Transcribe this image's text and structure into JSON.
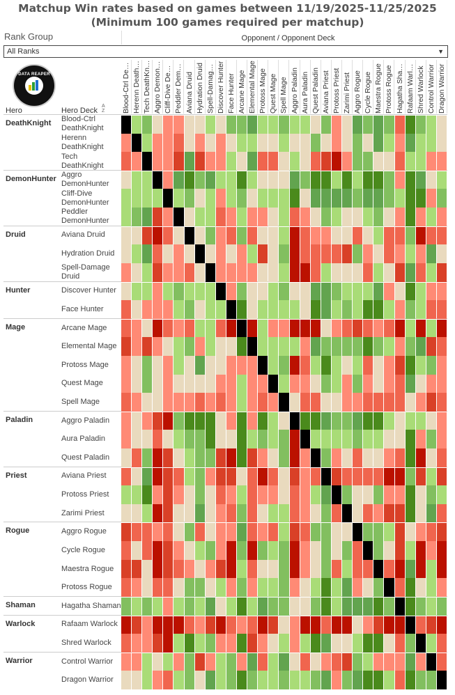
{
  "title_line1": "Matchup Win rates based on games between 11/19/2025-11/25/2025",
  "title_line2": "(Minimum 100 games required per matchup)",
  "filter": {
    "label": "Rank Group",
    "value": "All Ranks"
  },
  "logo_text": "DATA REAPER REPORT",
  "headers": {
    "hero": "Hero",
    "deck": "Hero Deck",
    "sort_icon": "A Z",
    "opponent": "Opponent / Opponent Deck"
  },
  "colors": {
    "diagonal": "#000000",
    "scale": [
      {
        "max": 39,
        "color": "#bb1100"
      },
      {
        "max": 43,
        "color": "#d94027"
      },
      {
        "max": 46,
        "color": "#f0654e"
      },
      {
        "max": 48,
        "color": "#ff8a75"
      },
      {
        "max": 51,
        "color": "#e9dabe"
      },
      {
        "max": 54,
        "color": "#a9dc77"
      },
      {
        "max": 56,
        "color": "#82bf5f"
      },
      {
        "max": 59,
        "color": "#62a44f"
      },
      {
        "max": 100,
        "color": "#4a8a1c"
      }
    ]
  },
  "chart_data": {
    "type": "heatmap",
    "title": "Matchup Win rates based on games between 11/19/2025-11/25/2025 (Minimum 100 games required per matchup)",
    "value_unit": "approximate win rate % (estimated from colour)",
    "groups": [
      {
        "hero": "DeathKnight",
        "decks": [
          "Blood-Ctrl DeathKnight",
          "Herenn DeathKnight",
          "Tech DeathKnight"
        ]
      },
      {
        "hero": "DemonHunter",
        "decks": [
          "Aggro DemonHunter",
          "Cliff-Dive DemonHunter",
          "Peddler DemonHunter"
        ]
      },
      {
        "hero": "Druid",
        "decks": [
          "Aviana Druid",
          "Hydration Druid",
          "Spell-Damage Druid"
        ]
      },
      {
        "hero": "Hunter",
        "decks": [
          "Discover Hunter",
          "Face Hunter"
        ]
      },
      {
        "hero": "Mage",
        "decks": [
          "Arcane Mage",
          "Elemental Mage",
          "Protoss Mage",
          "Quest Mage",
          "Spell Mage"
        ]
      },
      {
        "hero": "Paladin",
        "decks": [
          "Aggro Paladin",
          "Aura Paladin",
          "Quest Paladin"
        ]
      },
      {
        "hero": "Priest",
        "decks": [
          "Aviana Priest",
          "Protoss Priest",
          "Zarimi Priest"
        ]
      },
      {
        "hero": "Rogue",
        "decks": [
          "Aggro Rogue",
          "Cycle Rogue",
          "Maestra Rogue",
          "Protoss Rogue"
        ]
      },
      {
        "hero": "Shaman",
        "decks": [
          "Hagatha Shaman"
        ]
      },
      {
        "hero": "Warlock",
        "decks": [
          "Rafaam Warlock",
          "Shred Warlock"
        ]
      },
      {
        "hero": "Warrior",
        "decks": [
          "Control Warrior",
          "Dragon Warrior"
        ]
      }
    ],
    "columns": [
      "Blood-Ctrl DeathKnight",
      "Herenn DeathKnight",
      "Tech DeathKnight",
      "Aggro DemonHunter",
      "Cliff-Dive DemonHunter",
      "Peddler DemonHunter",
      "Aviana Druid",
      "Hydration Druid",
      "Spell-Damage Druid",
      "Discover Hunter",
      "Face Hunter",
      "Arcane Mage",
      "Elemental Mage",
      "Protoss Mage",
      "Quest Mage",
      "Spell Mage",
      "Aggro Paladin",
      "Aura Paladin",
      "Quest Paladin",
      "Aviana Priest",
      "Protoss Priest",
      "Zarimi Priest",
      "Aggro Rogue",
      "Cycle Rogue",
      "Maestra Rogue",
      "Protoss Rogue",
      "Hagatha Shaman",
      "Rafaam Warlock",
      "Shred Warlock",
      "Control Warrior",
      "Dragon Warrior"
    ],
    "values": [
      [
        null,
        53,
        55,
        50,
        47,
        47,
        50,
        50,
        53,
        50,
        55,
        55,
        58,
        53,
        53,
        55,
        53,
        53,
        50,
        55,
        47,
        50,
        58,
        55,
        58,
        55,
        45,
        62,
        55,
        53,
        50
      ],
      [
        47,
        null,
        53,
        47,
        47,
        45,
        50,
        47,
        50,
        47,
        50,
        53,
        53,
        50,
        50,
        53,
        50,
        50,
        55,
        50,
        47,
        50,
        55,
        50,
        58,
        53,
        47,
        58,
        53,
        53,
        50
      ],
      [
        45,
        47,
        null,
        47,
        47,
        42,
        58,
        42,
        47,
        47,
        53,
        50,
        58,
        45,
        45,
        50,
        53,
        50,
        45,
        42,
        38,
        47,
        55,
        55,
        50,
        50,
        45,
        53,
        53,
        47,
        47
      ],
      [
        50,
        53,
        53,
        null,
        47,
        58,
        62,
        55,
        58,
        53,
        53,
        62,
        53,
        50,
        50,
        50,
        58,
        55,
        62,
        62,
        53,
        62,
        53,
        62,
        62,
        55,
        47,
        62,
        58,
        50,
        53
      ],
      [
        53,
        53,
        53,
        53,
        null,
        53,
        55,
        50,
        53,
        47,
        53,
        55,
        50,
        53,
        53,
        53,
        62,
        50,
        58,
        58,
        58,
        58,
        55,
        58,
        58,
        55,
        53,
        62,
        62,
        47,
        55
      ],
      [
        53,
        55,
        58,
        42,
        47,
        null,
        50,
        53,
        53,
        45,
        47,
        53,
        47,
        47,
        50,
        53,
        45,
        47,
        50,
        55,
        53,
        50,
        50,
        53,
        55,
        50,
        47,
        62,
        47,
        53,
        47
      ],
      [
        50,
        50,
        42,
        38,
        45,
        50,
        null,
        50,
        55,
        47,
        45,
        55,
        45,
        50,
        50,
        53,
        38,
        45,
        47,
        47,
        50,
        50,
        45,
        50,
        53,
        45,
        45,
        55,
        38,
        45,
        45
      ],
      [
        50,
        53,
        58,
        45,
        50,
        47,
        50,
        null,
        50,
        47,
        50,
        47,
        53,
        42,
        50,
        55,
        38,
        45,
        45,
        45,
        45,
        42,
        55,
        47,
        50,
        45,
        47,
        53,
        47,
        58,
        50
      ],
      [
        47,
        50,
        53,
        42,
        47,
        47,
        45,
        50,
        null,
        47,
        47,
        47,
        47,
        50,
        50,
        53,
        38,
        38,
        45,
        53,
        50,
        50,
        50,
        45,
        53,
        50,
        42,
        58,
        45,
        53,
        42
      ],
      [
        50,
        53,
        53,
        47,
        53,
        55,
        53,
        53,
        53,
        null,
        47,
        55,
        50,
        50,
        53,
        55,
        50,
        50,
        58,
        58,
        55,
        53,
        53,
        53,
        58,
        47,
        50,
        62,
        53,
        47,
        47
      ],
      [
        45,
        50,
        47,
        47,
        47,
        53,
        55,
        50,
        53,
        53,
        null,
        62,
        50,
        53,
        53,
        53,
        53,
        50,
        62,
        58,
        53,
        55,
        53,
        62,
        62,
        53,
        47,
        55,
        53,
        45,
        45
      ],
      [
        45,
        47,
        50,
        38,
        45,
        47,
        45,
        53,
        53,
        45,
        38,
        null,
        38,
        53,
        47,
        47,
        38,
        38,
        38,
        50,
        47,
        45,
        42,
        45,
        47,
        45,
        38,
        53,
        38,
        53,
        38
      ],
      [
        42,
        47,
        42,
        47,
        50,
        53,
        55,
        47,
        53,
        50,
        50,
        62,
        null,
        53,
        53,
        53,
        53,
        47,
        58,
        55,
        55,
        55,
        55,
        62,
        55,
        53,
        47,
        55,
        58,
        42,
        45
      ],
      [
        47,
        50,
        55,
        50,
        47,
        53,
        50,
        58,
        50,
        50,
        47,
        47,
        47,
        null,
        53,
        55,
        38,
        45,
        53,
        62,
        53,
        50,
        53,
        45,
        50,
        47,
        42,
        62,
        53,
        55,
        47
      ],
      [
        47,
        50,
        55,
        50,
        47,
        50,
        50,
        50,
        50,
        47,
        47,
        53,
        47,
        47,
        null,
        53,
        47,
        47,
        50,
        55,
        53,
        47,
        55,
        47,
        50,
        47,
        45,
        58,
        50,
        47,
        47
      ],
      [
        45,
        47,
        50,
        50,
        47,
        47,
        47,
        45,
        47,
        45,
        47,
        53,
        47,
        45,
        47,
        null,
        50,
        45,
        45,
        50,
        50,
        47,
        47,
        45,
        45,
        45,
        45,
        50,
        47,
        42,
        45
      ],
      [
        47,
        50,
        47,
        42,
        38,
        55,
        62,
        62,
        62,
        50,
        47,
        62,
        47,
        62,
        53,
        50,
        null,
        62,
        62,
        58,
        55,
        55,
        58,
        62,
        62,
        53,
        50,
        53,
        53,
        50,
        47
      ],
      [
        47,
        50,
        50,
        45,
        50,
        53,
        55,
        55,
        62,
        50,
        50,
        62,
        53,
        55,
        53,
        55,
        38,
        null,
        53,
        53,
        53,
        53,
        55,
        53,
        53,
        50,
        50,
        62,
        47,
        55,
        47
      ],
      [
        50,
        45,
        55,
        38,
        42,
        50,
        53,
        55,
        55,
        42,
        38,
        62,
        42,
        47,
        50,
        55,
        38,
        47,
        null,
        55,
        47,
        50,
        45,
        50,
        50,
        47,
        45,
        62,
        38,
        50,
        45
      ],
      [
        45,
        50,
        58,
        38,
        42,
        45,
        53,
        55,
        47,
        42,
        42,
        50,
        45,
        38,
        45,
        50,
        42,
        47,
        45,
        null,
        42,
        45,
        45,
        45,
        45,
        38,
        38,
        55,
        42,
        53,
        42
      ],
      [
        53,
        53,
        62,
        47,
        42,
        47,
        50,
        55,
        50,
        45,
        47,
        53,
        45,
        47,
        47,
        50,
        45,
        47,
        53,
        58,
        null,
        55,
        50,
        50,
        55,
        47,
        47,
        62,
        50,
        55,
        53
      ],
      [
        50,
        50,
        53,
        38,
        42,
        50,
        50,
        58,
        50,
        47,
        45,
        55,
        45,
        50,
        53,
        53,
        45,
        47,
        50,
        55,
        45,
        null,
        50,
        45,
        47,
        42,
        42,
        62,
        50,
        58,
        45
      ],
      [
        42,
        45,
        45,
        47,
        45,
        50,
        55,
        45,
        50,
        47,
        47,
        58,
        45,
        47,
        45,
        53,
        42,
        45,
        55,
        55,
        50,
        50,
        null,
        55,
        55,
        53,
        42,
        50,
        47,
        45,
        42
      ],
      [
        45,
        50,
        45,
        38,
        42,
        47,
        50,
        53,
        55,
        47,
        38,
        55,
        38,
        55,
        53,
        55,
        38,
        47,
        50,
        55,
        50,
        55,
        45,
        null,
        55,
        50,
        42,
        53,
        38,
        47,
        38
      ],
      [
        42,
        42,
        50,
        38,
        42,
        45,
        47,
        50,
        47,
        42,
        38,
        53,
        45,
        50,
        50,
        55,
        38,
        47,
        50,
        55,
        45,
        53,
        45,
        45,
        null,
        45,
        38,
        58,
        38,
        53,
        38
      ],
      [
        45,
        47,
        50,
        45,
        45,
        50,
        55,
        55,
        50,
        53,
        47,
        55,
        47,
        53,
        53,
        55,
        47,
        50,
        53,
        62,
        53,
        58,
        47,
        50,
        55,
        null,
        45,
        62,
        50,
        53,
        47
      ],
      [
        55,
        53,
        55,
        53,
        47,
        53,
        55,
        53,
        58,
        50,
        53,
        62,
        53,
        58,
        55,
        55,
        50,
        50,
        55,
        62,
        53,
        58,
        58,
        58,
        62,
        55,
        null,
        62,
        55,
        53,
        55
      ],
      [
        38,
        42,
        47,
        38,
        38,
        38,
        45,
        47,
        42,
        38,
        45,
        47,
        45,
        38,
        42,
        50,
        47,
        38,
        38,
        45,
        38,
        38,
        50,
        47,
        42,
        38,
        38,
        null,
        45,
        42,
        38
      ],
      [
        45,
        47,
        47,
        42,
        38,
        53,
        62,
        53,
        55,
        47,
        47,
        62,
        42,
        47,
        50,
        53,
        47,
        53,
        62,
        58,
        50,
        50,
        53,
        62,
        62,
        50,
        45,
        55,
        null,
        53,
        45
      ],
      [
        47,
        47,
        53,
        50,
        53,
        47,
        55,
        42,
        47,
        53,
        55,
        47,
        58,
        45,
        53,
        58,
        50,
        45,
        50,
        47,
        45,
        42,
        55,
        53,
        47,
        47,
        47,
        58,
        47,
        null,
        45
      ],
      [
        50,
        50,
        53,
        47,
        45,
        53,
        55,
        50,
        58,
        53,
        55,
        62,
        55,
        53,
        53,
        55,
        53,
        53,
        55,
        58,
        47,
        55,
        58,
        62,
        62,
        53,
        45,
        62,
        55,
        55,
        null
      ]
    ]
  }
}
